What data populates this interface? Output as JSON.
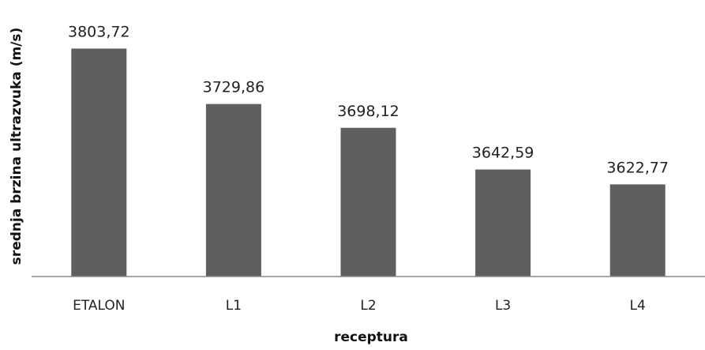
{
  "chart_data": {
    "type": "bar",
    "categories": [
      "ETALON",
      "L1",
      "L2",
      "L3",
      "L4"
    ],
    "values": [
      3803.72,
      3729.86,
      3698.12,
      3642.59,
      3622.77
    ],
    "value_labels": [
      "3803,72",
      "3729,86",
      "3698,12",
      "3642,59",
      "3622,77"
    ],
    "title": "",
    "xlabel": "receptura",
    "ylabel": "srednja brzina ultrazvuka (m/s)",
    "ylim": [
      3500,
      3820
    ],
    "grid": false,
    "legend": "none",
    "bar_color": "#5f5f5f",
    "axis_color": "#8c8c8c"
  }
}
